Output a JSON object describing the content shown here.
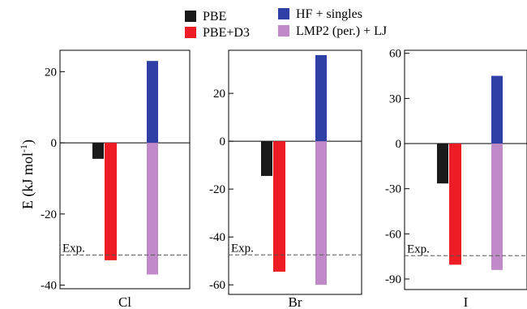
{
  "chart_data": [
    {
      "type": "bar",
      "panel": "Cl",
      "xlabel": "Cl",
      "ylim": [
        -41,
        26
      ],
      "yticks": [
        -40,
        -20,
        0,
        20
      ],
      "series": [
        {
          "name": "PBE",
          "values": [
            -4.5
          ]
        },
        {
          "name": "PBE+D3",
          "values": [
            -33
          ]
        },
        {
          "name": "HF + singles",
          "values": [
            23
          ]
        },
        {
          "name": "LMP2 (per.) + LJ",
          "values": [
            -37
          ]
        }
      ],
      "exp_value": -31.5,
      "exp_label": "Exp."
    },
    {
      "type": "bar",
      "panel": "Br",
      "xlabel": "Br",
      "ylim": [
        -64,
        38
      ],
      "yticks": [
        -60,
        -40,
        -20,
        0,
        20
      ],
      "series": [
        {
          "name": "PBE",
          "values": [
            -14.5
          ]
        },
        {
          "name": "PBE+D3",
          "values": [
            -54.5
          ]
        },
        {
          "name": "HF + singles",
          "values": [
            36
          ]
        },
        {
          "name": "LMP2 (per.) + LJ",
          "values": [
            -60
          ]
        }
      ],
      "exp_value": -47.5,
      "exp_label": "Exp."
    },
    {
      "type": "bar",
      "panel": "I",
      "xlabel": "I",
      "ylim": [
        -97,
        62
      ],
      "yticks": [
        -90,
        -60,
        -30,
        0,
        30,
        60
      ],
      "series": [
        {
          "name": "PBE",
          "values": [
            -26.5
          ]
        },
        {
          "name": "PBE+D3",
          "values": [
            -80.5
          ]
        },
        {
          "name": "HF + singles",
          "values": [
            45
          ]
        },
        {
          "name": "LMP2 (per.) + LJ",
          "values": [
            -84
          ]
        }
      ],
      "exp_value": -74.5,
      "exp_label": "Exp."
    }
  ],
  "legend": [
    {
      "name": "PBE",
      "color": "#1a1a1a"
    },
    {
      "name": "PBE+D3",
      "color": "#ee1c25"
    },
    {
      "name": "HF + singles",
      "color": "#2e3fa6"
    },
    {
      "name": "LMP2 (per.) + LJ",
      "color": "#c08ac8"
    }
  ],
  "ylabel": "E (kJ mol-1)",
  "ylabel_main": "E (kJ mol",
  "ylabel_sup": "-1",
  "ylabel_end": ")"
}
